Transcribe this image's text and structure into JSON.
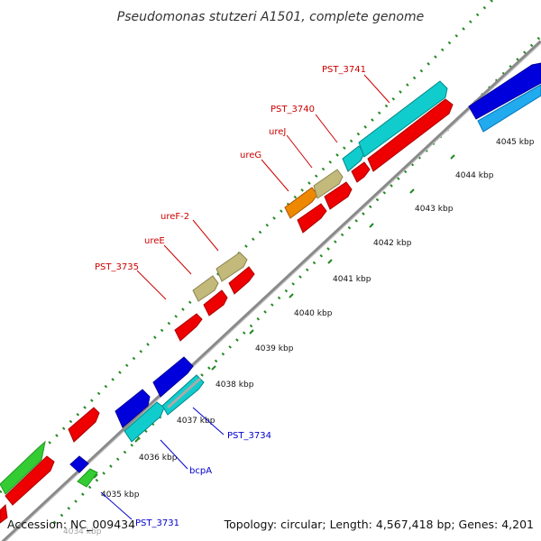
{
  "title": "Pseudomonas stutzeri A1501, complete genome",
  "footer": {
    "accession": "Accession: NC_009434",
    "stats": "Topology: circular; Length: 4,567,418 bp; Genes: 4,201"
  },
  "ticks": [
    "4035 kbp",
    "4036 kbp",
    "4037 kbp",
    "4038 kbp",
    "4039 kbp",
    "4040 kbp",
    "4041 kbp",
    "4042 kbp",
    "4043 kbp",
    "4044 kbp",
    "4045 kbp"
  ],
  "clipped_tick": "4034 kbp",
  "gene_labels": {
    "pst3741": "PST_3741",
    "pst3740": "PST_3740",
    "urej": "ureJ",
    "ureg": "ureG",
    "uref2": "ureF-2",
    "uree": "ureE",
    "pst3735": "PST_3735",
    "pst3734": "PST_3734",
    "bcpa": "bcpA",
    "pst3731": "PST_3731"
  },
  "colors": {
    "red": "#ee0000",
    "blue": "#0000dd",
    "cyan": "#11cccc",
    "lightblue": "#22aaee",
    "green": "#33cc33",
    "khaki": "#c2b97a",
    "orange": "#ee8800",
    "backbone": "#8a8a8a",
    "dots": "#228822"
  }
}
